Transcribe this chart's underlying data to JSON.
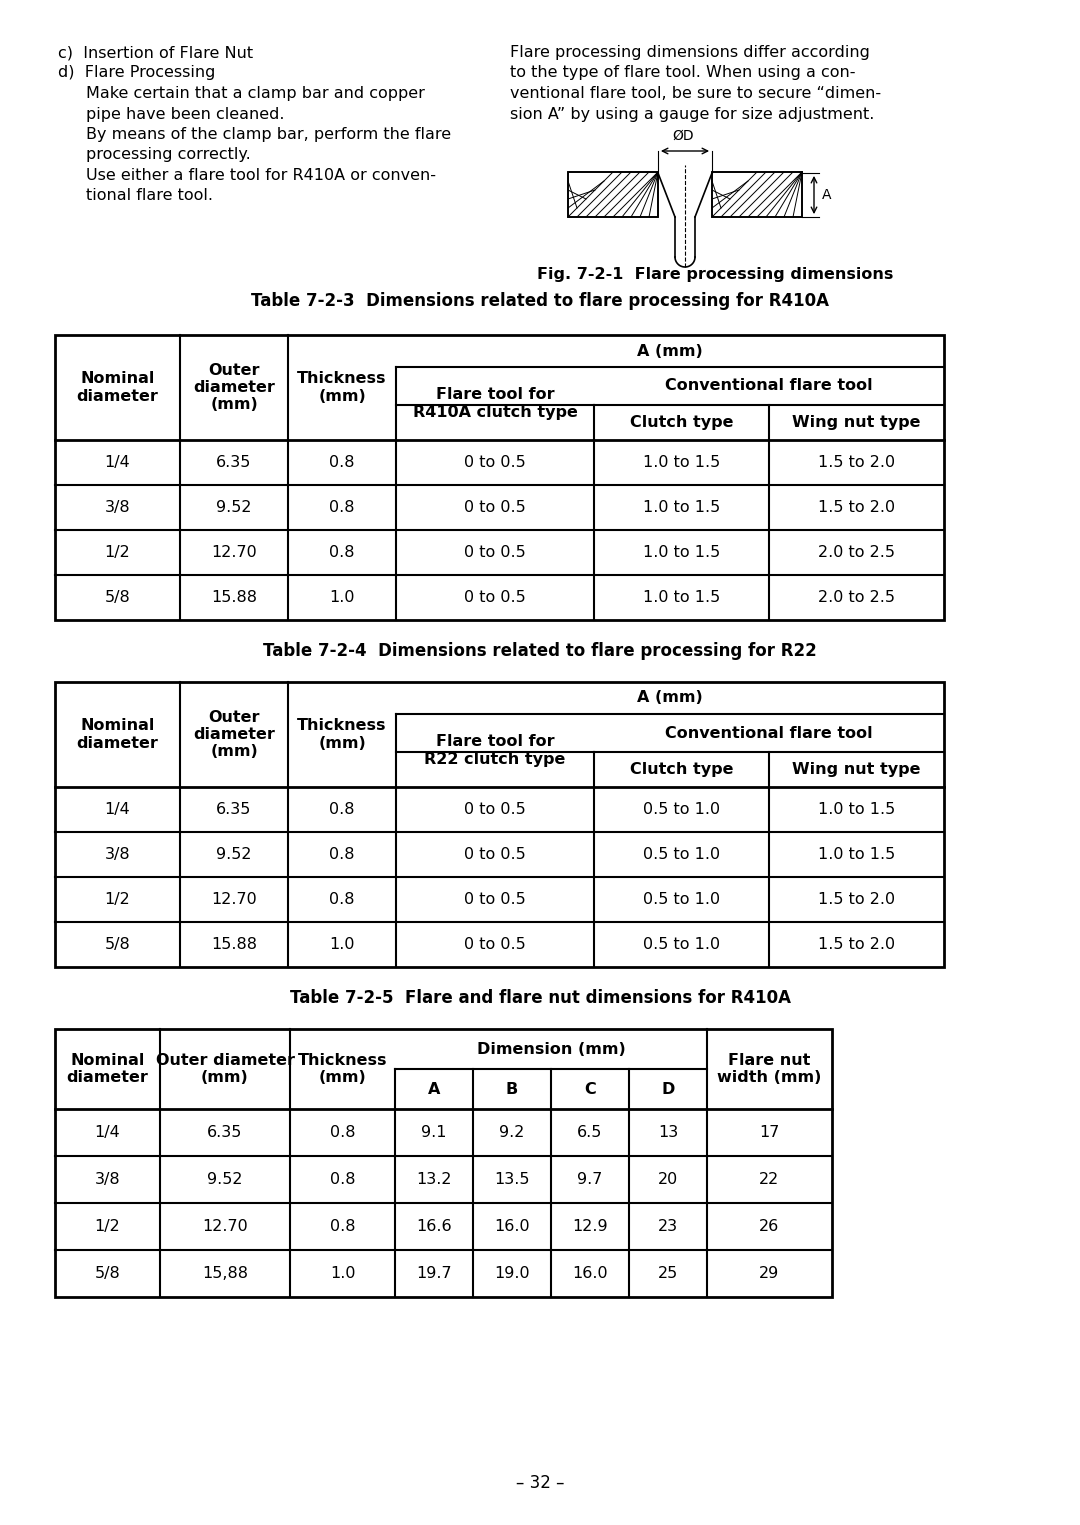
{
  "background_color": "#ffffff",
  "page_number": "– 32 –",
  "intro_left_lines": [
    {
      "text": "c)  Insertion of Flare Nut",
      "indent": 0
    },
    {
      "text": "d)  Flare Processing",
      "indent": 0
    },
    {
      "text": "Make certain that a clamp bar and copper",
      "indent": 1
    },
    {
      "text": "pipe have been cleaned.",
      "indent": 1
    },
    {
      "text": "By means of the clamp bar, perform the flare",
      "indent": 1
    },
    {
      "text": "processing correctly.",
      "indent": 1
    },
    {
      "text": "Use either a flare tool for R410A or conven-",
      "indent": 1
    },
    {
      "text": "tional flare tool.",
      "indent": 1
    }
  ],
  "intro_right_lines": [
    "Flare processing dimensions differ according",
    "to the type of flare tool. When using a con-",
    "ventional flare tool, be sure to secure “dimen-",
    "sion A” by using a gauge for size adjustment."
  ],
  "fig_caption": "Fig. 7-2-1  Flare processing dimensions",
  "table1_title": "Table 7-2-3  Dimensions related to flare processing for R410A",
  "table1_flare_col": "Flare tool for\nR410A clutch type",
  "table1_data": [
    [
      "1/4",
      "6.35",
      "0.8",
      "0 to 0.5",
      "1.0 to 1.5",
      "1.5 to 2.0"
    ],
    [
      "3/8",
      "9.52",
      "0.8",
      "0 to 0.5",
      "1.0 to 1.5",
      "1.5 to 2.0"
    ],
    [
      "1/2",
      "12.70",
      "0.8",
      "0 to 0.5",
      "1.0 to 1.5",
      "2.0 to 2.5"
    ],
    [
      "5/8",
      "15.88",
      "1.0",
      "0 to 0.5",
      "1.0 to 1.5",
      "2.0 to 2.5"
    ]
  ],
  "table2_title": "Table 7-2-4  Dimensions related to flare processing for R22",
  "table2_flare_col": "Flare tool for\nR22 clutch type",
  "table2_data": [
    [
      "1/4",
      "6.35",
      "0.8",
      "0 to 0.5",
      "0.5 to 1.0",
      "1.0 to 1.5"
    ],
    [
      "3/8",
      "9.52",
      "0.8",
      "0 to 0.5",
      "0.5 to 1.0",
      "1.0 to 1.5"
    ],
    [
      "1/2",
      "12.70",
      "0.8",
      "0 to 0.5",
      "0.5 to 1.0",
      "1.5 to 2.0"
    ],
    [
      "5/8",
      "15.88",
      "1.0",
      "0 to 0.5",
      "0.5 to 1.0",
      "1.5 to 2.0"
    ]
  ],
  "table3_title": "Table 7-2-5  Flare and flare nut dimensions for R410A",
  "table3_data": [
    [
      "1/4",
      "6.35",
      "0.8",
      "9.1",
      "9.2",
      "6.5",
      "13",
      "17"
    ],
    [
      "3/8",
      "9.52",
      "0.8",
      "13.2",
      "13.5",
      "9.7",
      "20",
      "22"
    ],
    [
      "1/2",
      "12.70",
      "0.8",
      "16.6",
      "16.0",
      "12.9",
      "23",
      "26"
    ],
    [
      "5/8",
      "15,88",
      "1.0",
      "19.7",
      "19.0",
      "16.0",
      "25",
      "29"
    ]
  ]
}
